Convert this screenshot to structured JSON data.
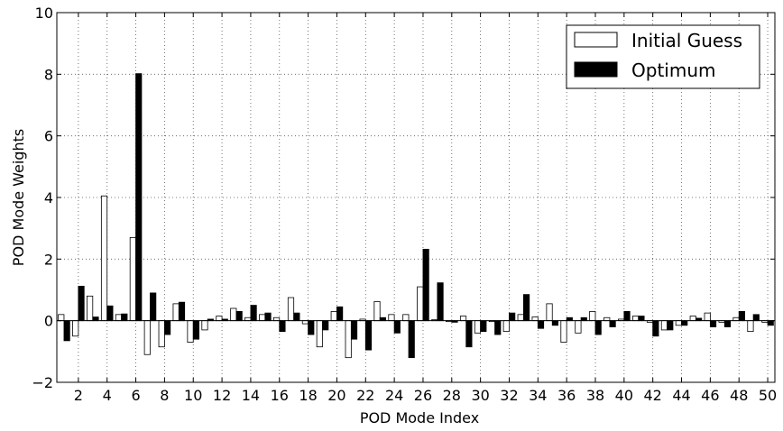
{
  "chart_data": {
    "type": "bar",
    "xlabel": "POD Mode Index",
    "ylabel": "POD Mode Weights",
    "xlim": [
      0.5,
      50.5
    ],
    "ylim": [
      -2,
      10
    ],
    "x_ticks": [
      2,
      4,
      6,
      8,
      10,
      12,
      14,
      16,
      18,
      20,
      22,
      24,
      26,
      28,
      30,
      32,
      34,
      36,
      38,
      40,
      42,
      44,
      46,
      48,
      50
    ],
    "y_ticks": [
      -2,
      0,
      2,
      4,
      6,
      8,
      10
    ],
    "grid": true,
    "legend_position": "top-right",
    "categories": [
      1,
      2,
      3,
      4,
      5,
      6,
      7,
      8,
      9,
      10,
      11,
      12,
      13,
      14,
      15,
      16,
      17,
      18,
      19,
      20,
      21,
      22,
      23,
      24,
      25,
      26,
      27,
      28,
      29,
      30,
      31,
      32,
      33,
      34,
      35,
      36,
      37,
      38,
      39,
      40,
      41,
      42,
      43,
      44,
      45,
      46,
      47,
      48,
      49,
      50
    ],
    "series": [
      {
        "name": "Initial Guess",
        "color": "#ffffff",
        "values": [
          0.2,
          -0.5,
          0.8,
          4.05,
          0.2,
          2.7,
          -1.1,
          -0.85,
          0.55,
          -0.7,
          -0.3,
          0.15,
          0.4,
          0.1,
          0.2,
          0.1,
          0.75,
          -0.1,
          -0.85,
          0.3,
          -1.2,
          0.05,
          0.62,
          0.2,
          0.2,
          1.1,
          0.03,
          -0.03,
          0.15,
          -0.4,
          -0.03,
          -0.35,
          0.2,
          0.12,
          0.55,
          -0.7,
          -0.4,
          0.3,
          0.1,
          0.05,
          0.15,
          -0.05,
          -0.3,
          -0.15,
          0.15,
          0.25,
          -0.05,
          0.1,
          -0.35,
          -0.05
        ]
      },
      {
        "name": "Optimum",
        "color": "#000000",
        "values": [
          -0.65,
          1.12,
          0.12,
          0.48,
          0.22,
          8.02,
          0.9,
          -0.45,
          0.6,
          -0.6,
          0.05,
          0.05,
          0.3,
          0.5,
          0.25,
          -0.35,
          0.25,
          -0.45,
          -0.3,
          0.45,
          -0.6,
          -0.95,
          0.1,
          -0.4,
          -1.2,
          2.32,
          1.23,
          -0.05,
          -0.85,
          -0.35,
          -0.45,
          0.25,
          0.85,
          -0.25,
          -0.15,
          0.1,
          0.1,
          -0.45,
          -0.2,
          0.3,
          0.15,
          -0.5,
          -0.3,
          -0.15,
          0.08,
          -0.2,
          -0.2,
          0.3,
          0.2,
          -0.15
        ]
      }
    ]
  }
}
